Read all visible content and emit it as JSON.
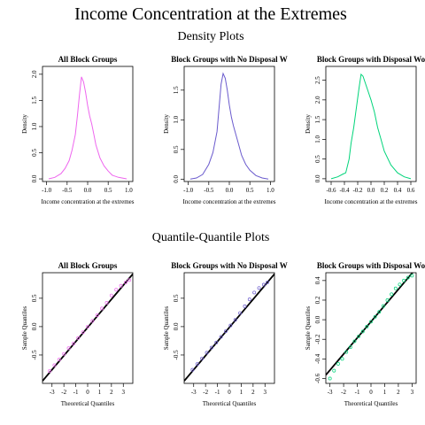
{
  "main_title": "Income Concentration at the Extremes",
  "sections": {
    "density": "Density Plots",
    "qq": "Quantile-Quantile Plots"
  },
  "chart_data": [
    {
      "type": "line",
      "subtype": "density",
      "title": "All Block Groups",
      "xlabel": "Income concentration at the extremes",
      "ylabel": "Density",
      "color": "#ee66ee",
      "xlim": [
        -1.1,
        1.1
      ],
      "ylim": [
        -0.05,
        2.15
      ],
      "x_ticks": [
        -1.0,
        -0.5,
        0.0,
        0.5,
        1.0
      ],
      "x_tick_labels": [
        "-1.0",
        "-0.5",
        "0.0",
        "0.5",
        "1.0"
      ],
      "y_ticks": [
        0.0,
        0.5,
        1.0,
        1.5,
        2.0
      ],
      "y_tick_labels": [
        "0.0",
        "0.5",
        "1.0",
        "1.5",
        "2.0"
      ],
      "x": [
        -0.95,
        -0.8,
        -0.65,
        -0.55,
        -0.45,
        -0.38,
        -0.3,
        -0.25,
        -0.2,
        -0.15,
        -0.1,
        -0.05,
        0.0,
        0.05,
        0.1,
        0.15,
        0.2,
        0.3,
        0.4,
        0.5,
        0.6,
        0.75,
        0.95
      ],
      "y": [
        0.0,
        0.03,
        0.1,
        0.2,
        0.35,
        0.55,
        0.85,
        1.2,
        1.6,
        1.95,
        1.85,
        1.65,
        1.4,
        1.2,
        1.05,
        0.85,
        0.65,
        0.4,
        0.25,
        0.15,
        0.07,
        0.03,
        0.0
      ]
    },
    {
      "type": "line",
      "subtype": "density",
      "title": "Block Groups with No Disposal W",
      "xlabel": "Income concentration at the extremes",
      "ylabel": "Density",
      "color": "#6a5acd",
      "xlim": [
        -1.1,
        1.1
      ],
      "ylim": [
        -0.04,
        1.9
      ],
      "x_ticks": [
        -1.0,
        -0.5,
        0.0,
        0.5,
        1.0
      ],
      "x_tick_labels": [
        "-1.0",
        "-0.5",
        "0.0",
        "0.5",
        "1.0"
      ],
      "y_ticks": [
        0.0,
        0.5,
        1.0,
        1.5
      ],
      "y_tick_labels": [
        "0.0",
        "0.5",
        "1.0",
        "1.5"
      ],
      "x": [
        -0.95,
        -0.8,
        -0.65,
        -0.5,
        -0.4,
        -0.3,
        -0.25,
        -0.2,
        -0.15,
        -0.1,
        -0.05,
        0.0,
        0.05,
        0.1,
        0.2,
        0.3,
        0.4,
        0.5,
        0.65,
        0.8,
        0.95
      ],
      "y": [
        0.0,
        0.02,
        0.08,
        0.25,
        0.45,
        0.8,
        1.2,
        1.6,
        1.78,
        1.7,
        1.5,
        1.25,
        1.05,
        0.9,
        0.65,
        0.4,
        0.25,
        0.15,
        0.06,
        0.02,
        0.0
      ]
    },
    {
      "type": "line",
      "subtype": "density",
      "title": "Block Groups with Disposal Wo",
      "xlabel": "Income concentration at the extremes",
      "ylabel": "Density",
      "color": "#00d47a",
      "xlim": [
        -0.68,
        0.68
      ],
      "ylim": [
        -0.07,
        2.85
      ],
      "x_ticks": [
        -0.6,
        -0.4,
        -0.2,
        0.0,
        0.2,
        0.4,
        0.6
      ],
      "x_tick_labels": [
        "-0.6",
        "-0.4",
        "-0.2",
        "0.0",
        "0.2",
        "0.4",
        "0.6"
      ],
      "y_ticks": [
        0.0,
        0.5,
        1.0,
        1.5,
        2.0,
        2.5
      ],
      "y_tick_labels": [
        "0.0",
        "0.5",
        "1.0",
        "1.5",
        "2.0",
        "2.5"
      ],
      "x": [
        -0.6,
        -0.5,
        -0.42,
        -0.38,
        -0.33,
        -0.3,
        -0.26,
        -0.22,
        -0.18,
        -0.15,
        -0.12,
        -0.08,
        -0.04,
        0.0,
        0.05,
        0.1,
        0.15,
        0.2,
        0.3,
        0.4,
        0.5,
        0.6
      ],
      "y": [
        0.0,
        0.05,
        0.12,
        0.15,
        0.5,
        0.9,
        1.3,
        1.8,
        2.3,
        2.65,
        2.6,
        2.4,
        2.2,
        2.0,
        1.7,
        1.3,
        1.0,
        0.7,
        0.35,
        0.15,
        0.05,
        0.0
      ]
    },
    {
      "type": "scatter",
      "subtype": "qq",
      "title": "All Block Groups",
      "xlabel": "Theoretical Quantiles",
      "ylabel": "Sample Quantiles",
      "color": "#ee66ee",
      "xlim": [
        -3.8,
        3.8
      ],
      "ylim": [
        -1.0,
        0.95
      ],
      "x_ticks": [
        -3,
        -2,
        -1,
        0,
        1,
        2,
        3
      ],
      "x_tick_labels": [
        "-3",
        "-2",
        "-1",
        "0",
        "1",
        "2",
        "3"
      ],
      "y_ticks": [
        -0.5,
        0.0,
        0.5
      ],
      "y_tick_labels": [
        "-0.5",
        "0.0",
        "0.5"
      ],
      "points_x": [
        -3.2,
        -2.8,
        -2.4,
        -2.0,
        -1.6,
        -1.2,
        -0.8,
        -0.4,
        0.0,
        0.4,
        0.8,
        1.2,
        1.6,
        2.0,
        2.4,
        2.8,
        3.2,
        3.5
      ],
      "points_y": [
        -0.78,
        -0.68,
        -0.58,
        -0.48,
        -0.38,
        -0.3,
        -0.2,
        -0.1,
        0.0,
        0.1,
        0.2,
        0.32,
        0.42,
        0.55,
        0.65,
        0.72,
        0.78,
        0.82
      ],
      "line": {
        "slope": 0.248,
        "intercept": -0.015,
        "color": "#000000"
      }
    },
    {
      "type": "scatter",
      "subtype": "qq",
      "title": "Block Groups with No Disposal W",
      "xlabel": "Theoretical Quantiles",
      "ylabel": "Sample Quantiles",
      "color": "#6a5acd",
      "xlim": [
        -3.8,
        3.8
      ],
      "ylim": [
        -1.0,
        0.95
      ],
      "x_ticks": [
        -3,
        -2,
        -1,
        0,
        1,
        2,
        3
      ],
      "x_tick_labels": [
        "-3",
        "-2",
        "-1",
        "0",
        "1",
        "2",
        "3"
      ],
      "y_ticks": [
        -0.5,
        0.0,
        0.5
      ],
      "y_tick_labels": [
        "-0.5",
        "0.0",
        "0.5"
      ],
      "points_x": [
        -3.1,
        -2.7,
        -2.3,
        -1.9,
        -1.5,
        -1.1,
        -0.7,
        -0.3,
        0.1,
        0.5,
        0.9,
        1.3,
        1.7,
        2.1,
        2.5,
        2.9,
        3.2
      ],
      "points_y": [
        -0.76,
        -0.66,
        -0.56,
        -0.46,
        -0.37,
        -0.28,
        -0.18,
        -0.08,
        0.02,
        0.12,
        0.24,
        0.36,
        0.48,
        0.6,
        0.68,
        0.74,
        0.78
      ],
      "line": {
        "slope": 0.248,
        "intercept": -0.015,
        "color": "#000000"
      }
    },
    {
      "type": "scatter",
      "subtype": "qq",
      "title": "Block Groups with Disposal Wo",
      "xlabel": "Theoretical Quantiles",
      "ylabel": "Sample Quantiles",
      "color": "#00d47a",
      "xlim": [
        -3.3,
        3.3
      ],
      "ylim": [
        -0.65,
        0.48
      ],
      "x_ticks": [
        -3,
        -2,
        -1,
        0,
        1,
        2,
        3
      ],
      "x_tick_labels": [
        "-3",
        "-2",
        "-1",
        "0",
        "1",
        "2",
        "3"
      ],
      "y_ticks": [
        -0.6,
        -0.4,
        -0.2,
        0.0,
        0.2,
        0.4
      ],
      "y_tick_labels": [
        "-0.6",
        "-0.4",
        "-0.2",
        "0.0",
        "0.2",
        "0.4"
      ],
      "points_x": [
        -3.0,
        -2.7,
        -2.4,
        -2.1,
        -1.8,
        -1.5,
        -1.2,
        -0.9,
        -0.6,
        -0.3,
        0.0,
        0.3,
        0.6,
        0.9,
        1.2,
        1.5,
        1.8,
        2.1,
        2.4,
        2.7,
        3.0
      ],
      "points_y": [
        -0.6,
        -0.52,
        -0.45,
        -0.4,
        -0.33,
        -0.28,
        -0.22,
        -0.17,
        -0.12,
        -0.07,
        -0.02,
        0.03,
        0.08,
        0.14,
        0.2,
        0.26,
        0.32,
        0.36,
        0.4,
        0.43,
        0.45
      ],
      "line": {
        "slope": 0.165,
        "intercept": -0.02,
        "color": "#000000"
      }
    }
  ]
}
